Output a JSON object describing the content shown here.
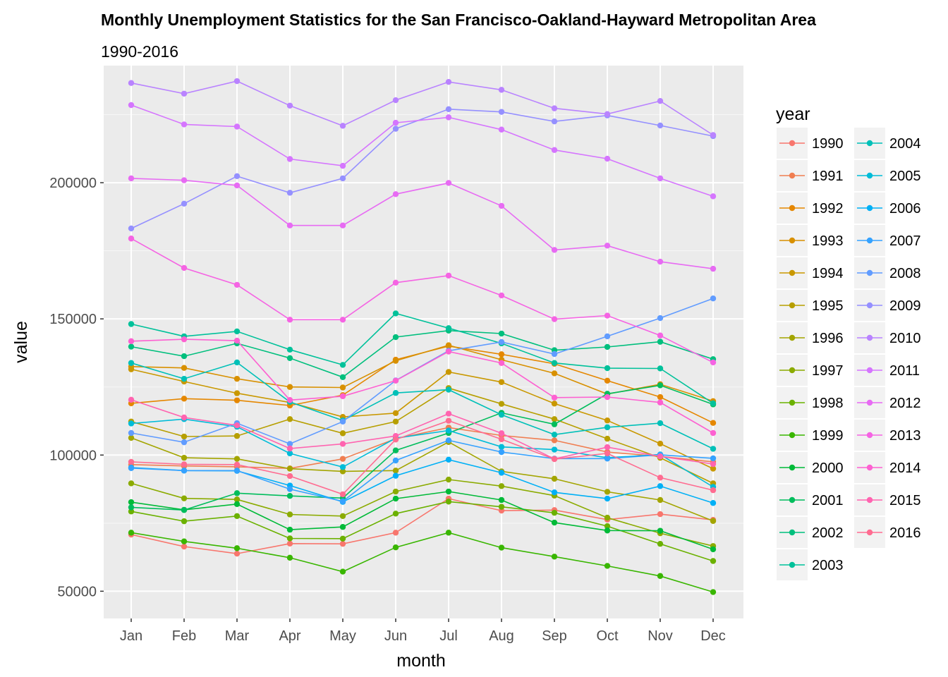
{
  "chart_data": {
    "type": "line",
    "title": "Monthly Unemployment Statistics for the San Francisco-Oakland-Hayward Metropolitan Area",
    "subtitle": "1990-2016",
    "xlabel": "month",
    "ylabel": "value",
    "legend_title": "year",
    "legend_position": "right",
    "grid": true,
    "ylim": [
      40000,
      243000
    ],
    "y_ticks": [
      50000,
      100000,
      150000,
      200000
    ],
    "y_tick_labels": [
      "50000",
      "100000",
      "150000",
      "200000"
    ],
    "categories": [
      "Jan",
      "Feb",
      "Mar",
      "Apr",
      "May",
      "Jun",
      "Jul",
      "Aug",
      "Sep",
      "Oct",
      "Nov",
      "Dec"
    ],
    "series": [
      {
        "name": "1990",
        "color": "#F8766D",
        "values": [
          70800,
          66400,
          63800,
          67500,
          67400,
          71500,
          84000,
          79600,
          79800,
          76300,
          78300,
          76200
        ]
      },
      {
        "name": "1991",
        "color": "#F07E51",
        "values": [
          96500,
          96000,
          95700,
          95100,
          98600,
          106000,
          110100,
          107200,
          105400,
          101100,
          99500,
          97500
        ]
      },
      {
        "name": "1992",
        "color": "#E58700",
        "values": [
          119000,
          120700,
          120100,
          118200,
          122000,
          135000,
          140000,
          137000,
          133500,
          127300,
          121300,
          111800
        ]
      },
      {
        "name": "1993",
        "color": "#D89000",
        "values": [
          132500,
          132000,
          128000,
          125000,
          124800,
          134600,
          140300,
          135000,
          130000,
          122400,
          126000,
          119800
        ]
      },
      {
        "name": "1994",
        "color": "#C99800",
        "values": [
          131500,
          127000,
          122700,
          119300,
          114000,
          115400,
          130500,
          126800,
          118900,
          112700,
          104200,
          95000
        ]
      },
      {
        "name": "1995",
        "color": "#B79F00",
        "values": [
          112300,
          106800,
          107000,
          113200,
          108000,
          112300,
          124600,
          118800,
          113200,
          106000,
          99000,
          89600
        ]
      },
      {
        "name": "1996",
        "color": "#A3A500",
        "values": [
          106300,
          99000,
          98600,
          95000,
          94000,
          94300,
          104800,
          94000,
          91300,
          86500,
          83500,
          75800
        ]
      },
      {
        "name": "1997",
        "color": "#8BAB00",
        "values": [
          89600,
          84100,
          83700,
          78200,
          77600,
          86600,
          91000,
          88600,
          85100,
          77000,
          71300,
          66600
        ]
      },
      {
        "name": "1998",
        "color": "#6BB100",
        "values": [
          79300,
          75700,
          77600,
          69400,
          69300,
          78500,
          82900,
          81000,
          78800,
          73900,
          67400,
          61100
        ]
      },
      {
        "name": "1999",
        "color": "#39B600",
        "values": [
          71500,
          68300,
          65800,
          62300,
          57200,
          66100,
          71500,
          66000,
          62700,
          59300,
          55600,
          49700
        ]
      },
      {
        "name": "2000",
        "color": "#00BA38",
        "values": [
          82700,
          79900,
          82000,
          72600,
          73600,
          84000,
          86600,
          83500,
          75200,
          72300,
          72200,
          65400
        ]
      },
      {
        "name": "2001",
        "color": "#00BD5C",
        "values": [
          80800,
          79800,
          86000,
          85000,
          84200,
          101700,
          108100,
          115500,
          111300,
          122500,
          125600,
          118600
        ]
      },
      {
        "name": "2002",
        "color": "#00BF7D",
        "values": [
          139800,
          136300,
          141000,
          135600,
          128600,
          143300,
          145700,
          144600,
          138500,
          139700,
          141600,
          135200
        ]
      },
      {
        "name": "2003",
        "color": "#00C19A",
        "values": [
          148100,
          143600,
          145400,
          138700,
          133100,
          152000,
          146600,
          141000,
          133800,
          131900,
          131800,
          119000
        ]
      },
      {
        "name": "2004",
        "color": "#00C0B8",
        "values": [
          133800,
          128000,
          134000,
          119500,
          112700,
          122800,
          124000,
          114800,
          107500,
          110200,
          111700,
          102300
        ]
      },
      {
        "name": "2005",
        "color": "#00BCD8",
        "values": [
          111600,
          113200,
          110400,
          100600,
          95600,
          106200,
          109000,
          103000,
          102000,
          99000,
          100200,
          88300
        ]
      },
      {
        "name": "2006",
        "color": "#00B0F6",
        "values": [
          95400,
          94300,
          94200,
          88800,
          82800,
          92400,
          98300,
          93500,
          86300,
          84000,
          88600,
          82400
        ]
      },
      {
        "name": "2007",
        "color": "#35A2FF",
        "values": [
          95200,
          94300,
          94300,
          87500,
          83000,
          98000,
          105400,
          101100,
          98700,
          98700,
          100100,
          98800
        ]
      },
      {
        "name": "2008",
        "color": "#619CFF",
        "values": [
          108100,
          104700,
          111700,
          104100,
          112300,
          127400,
          138300,
          141500,
          137100,
          143600,
          150300,
          157500
        ]
      },
      {
        "name": "2009",
        "color": "#9590FF",
        "values": [
          183200,
          192300,
          202400,
          196300,
          201600,
          219800,
          227000,
          226000,
          222500,
          224700,
          221000,
          217100
        ]
      },
      {
        "name": "2010",
        "color": "#B983FF",
        "values": [
          236600,
          232700,
          237300,
          228300,
          220900,
          230300,
          237000,
          234100,
          227300,
          225200,
          230000,
          217500
        ]
      },
      {
        "name": "2011",
        "color": "#D575FE",
        "values": [
          228500,
          221400,
          220600,
          208700,
          206200,
          222000,
          224000,
          219500,
          212000,
          208800,
          201600,
          195000
        ]
      },
      {
        "name": "2012",
        "color": "#E76BF3",
        "values": [
          201600,
          200900,
          199000,
          184300,
          184300,
          195800,
          199900,
          191500,
          175300,
          176900,
          171000,
          168400
        ]
      },
      {
        "name": "2013",
        "color": "#F564E3",
        "values": [
          179500,
          168700,
          162500,
          149700,
          149700,
          163300,
          165900,
          158600,
          149900,
          151200,
          143900,
          134000
        ]
      },
      {
        "name": "2014",
        "color": "#FD61D1",
        "values": [
          141800,
          142500,
          142000,
          120200,
          121600,
          127300,
          138000,
          133800,
          121100,
          121300,
          119300,
          108100
        ]
      },
      {
        "name": "2015",
        "color": "#FF64B0",
        "values": [
          120300,
          113800,
          110900,
          102400,
          104100,
          107000,
          115200,
          108000,
          98600,
          102900,
          99500,
          96700
        ]
      },
      {
        "name": "2016",
        "color": "#FF6C91",
        "values": [
          97500,
          96600,
          96500,
          92300,
          85600,
          105700,
          112600,
          105800,
          98500,
          100600,
          91700,
          87100
        ]
      }
    ]
  }
}
